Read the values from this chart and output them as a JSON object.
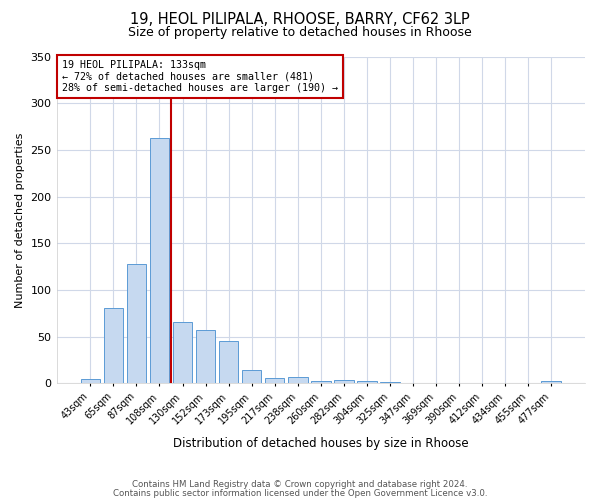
{
  "title_line1": "19, HEOL PILIPALA, RHOOSE, BARRY, CF62 3LP",
  "title_line2": "Size of property relative to detached houses in Rhoose",
  "xlabel": "Distribution of detached houses by size in Rhoose",
  "ylabel": "Number of detached properties",
  "bar_labels": [
    "43sqm",
    "65sqm",
    "87sqm",
    "108sqm",
    "130sqm",
    "152sqm",
    "173sqm",
    "195sqm",
    "217sqm",
    "238sqm",
    "260sqm",
    "282sqm",
    "304sqm",
    "325sqm",
    "347sqm",
    "369sqm",
    "390sqm",
    "412sqm",
    "434sqm",
    "455sqm",
    "477sqm"
  ],
  "bar_values": [
    5,
    81,
    128,
    263,
    66,
    57,
    45,
    14,
    6,
    7,
    3,
    4,
    2,
    1,
    0,
    0,
    0,
    0,
    0,
    0,
    2
  ],
  "bar_color": "#c6d9f0",
  "bar_edge_color": "#5b9bd5",
  "vline_color": "#c00000",
  "annotation_title": "19 HEOL PILIPALA: 133sqm",
  "annotation_line2": "← 72% of detached houses are smaller (481)",
  "annotation_line3": "28% of semi-detached houses are larger (190) →",
  "annotation_box_edge": "#c00000",
  "ylim": [
    0,
    350
  ],
  "yticks": [
    0,
    50,
    100,
    150,
    200,
    250,
    300,
    350
  ],
  "footer_line1": "Contains HM Land Registry data © Crown copyright and database right 2024.",
  "footer_line2": "Contains public sector information licensed under the Open Government Licence v3.0.",
  "bg_color": "#ffffff",
  "plot_bg_color": "#ffffff",
  "grid_color": "#d0d8e8"
}
